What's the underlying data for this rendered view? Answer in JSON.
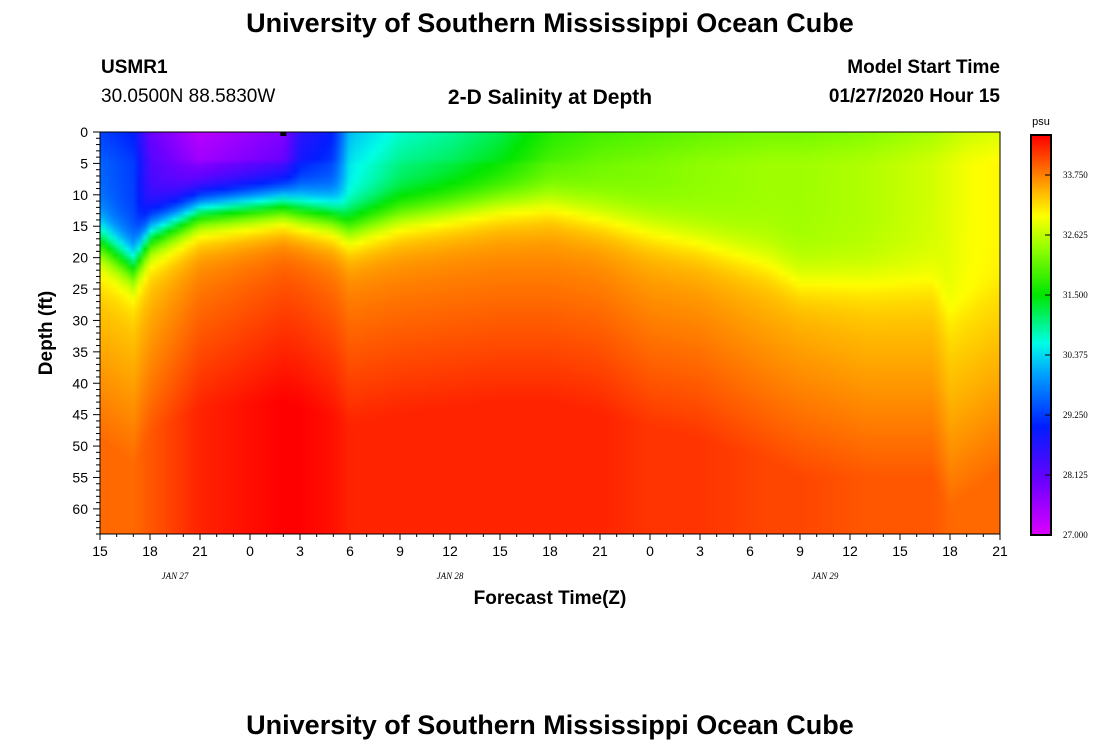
{
  "header": {
    "title": "University of Southern Mississippi Ocean Cube",
    "station": "USMR1",
    "coords": "30.0500N 88.5830W",
    "subtitle": "2-D Salinity at Depth",
    "model_start_label": "Model Start Time",
    "model_start_time": "01/27/2020 Hour 15"
  },
  "footer": {
    "title": "University of Southern Mississippi Ocean Cube"
  },
  "chart_data": {
    "type": "heatmap",
    "title": "2-D Salinity at Depth",
    "xlabel": "Forecast Time(Z)",
    "ylabel": "Depth (ft)",
    "x_hours_range": [
      0,
      54
    ],
    "x_tick_hours": [
      0,
      3,
      6,
      9,
      12,
      15,
      18,
      21,
      24,
      27,
      30,
      33,
      36,
      39,
      42,
      45,
      48,
      51,
      54
    ],
    "x_tick_labels": [
      "15",
      "18",
      "21",
      "0",
      "3",
      "6",
      "9",
      "12",
      "15",
      "18",
      "21",
      "0",
      "3",
      "6",
      "9",
      "12",
      "15",
      "18",
      "21"
    ],
    "date_labels": [
      {
        "text": "JAN  27",
        "hour": 4.5
      },
      {
        "text": "JAN  28",
        "hour": 21
      },
      {
        "text": "JAN  29",
        "hour": 43.5
      }
    ],
    "ylim": [
      0,
      64
    ],
    "y_ticks": [
      0,
      5,
      10,
      15,
      20,
      25,
      30,
      35,
      40,
      45,
      50,
      55,
      60
    ],
    "colorbar": {
      "unit": "psu",
      "min": 27.0,
      "max": 34.5,
      "ticks": [
        27.0,
        28.125,
        29.25,
        30.375,
        31.5,
        32.625,
        33.75
      ],
      "tick_labels": [
        "27.000",
        "28.125",
        "29.250",
        "30.375",
        "31.500",
        "32.625",
        "33.750"
      ]
    },
    "profile_points": {
      "hours": [
        0,
        2,
        3,
        6,
        11,
        12,
        14,
        15,
        18,
        21,
        24,
        27,
        30,
        33,
        36,
        40,
        42,
        46,
        50,
        51,
        52,
        54
      ],
      "surface_psu": [
        29.3,
        29.0,
        28.0,
        27.3,
        27.8,
        28.6,
        29.0,
        30.2,
        30.7,
        30.9,
        31.2,
        31.7,
        31.9,
        32.0,
        32.1,
        32.2,
        32.2,
        32.3,
        32.5,
        32.6,
        32.7,
        32.8
      ],
      "halocline_depth_ft": [
        17,
        21,
        16,
        12,
        11,
        12,
        13,
        15,
        13,
        12,
        11,
        11,
        13,
        15,
        17,
        20,
        23,
        23,
        23,
        28,
        26,
        22
      ],
      "bottom_psu": [
        33.9,
        33.9,
        34.0,
        34.3,
        34.5,
        34.5,
        34.4,
        34.3,
        34.3,
        34.3,
        34.3,
        34.3,
        34.3,
        34.2,
        34.2,
        34.1,
        34.1,
        34.0,
        34.0,
        33.9,
        33.9,
        33.9
      ]
    },
    "marker": {
      "hour": 11,
      "depth_ft": 0
    }
  }
}
